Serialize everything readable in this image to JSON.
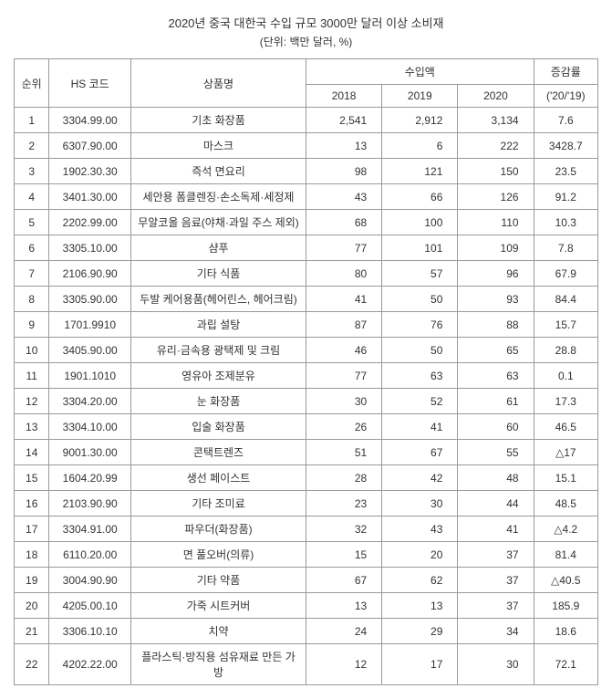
{
  "title": "2020년 중국 대한국 수입 규모 3000만 달러 이상 소비재",
  "subtitle": "(단위: 백만 달러, %)",
  "headers": {
    "rank": "순위",
    "hs_code": "HS 코드",
    "product_name": "상품명",
    "import_value": "수입액",
    "year_2018": "2018",
    "year_2019": "2019",
    "year_2020": "2020",
    "growth": "증감률",
    "growth_sub": "('20/'19)"
  },
  "rows": [
    {
      "rank": "1",
      "hs": "3304.99.00",
      "name": "기초 화장품",
      "y2018": "2,541",
      "y2019": "2,912",
      "y2020": "3,134",
      "growth": "7.6"
    },
    {
      "rank": "2",
      "hs": "6307.90.00",
      "name": "마스크",
      "y2018": "13",
      "y2019": "6",
      "y2020": "222",
      "growth": "3428.7"
    },
    {
      "rank": "3",
      "hs": "1902.30.30",
      "name": "즉석 면요리",
      "y2018": "98",
      "y2019": "121",
      "y2020": "150",
      "growth": "23.5"
    },
    {
      "rank": "4",
      "hs": "3401.30.00",
      "name": "세안용 폼클렌징·손소독제·세정제",
      "y2018": "43",
      "y2019": "66",
      "y2020": "126",
      "growth": "91.2"
    },
    {
      "rank": "5",
      "hs": "2202.99.00",
      "name": "무알코올 음료(야채·과일 주스 제외)",
      "y2018": "68",
      "y2019": "100",
      "y2020": "110",
      "growth": "10.3"
    },
    {
      "rank": "6",
      "hs": "3305.10.00",
      "name": "샴푸",
      "y2018": "77",
      "y2019": "101",
      "y2020": "109",
      "growth": "7.8"
    },
    {
      "rank": "7",
      "hs": "2106.90.90",
      "name": "기타 식품",
      "y2018": "80",
      "y2019": "57",
      "y2020": "96",
      "growth": "67.9"
    },
    {
      "rank": "8",
      "hs": "3305.90.00",
      "name": "두발 케어용품(헤어린스, 헤어크림)",
      "y2018": "41",
      "y2019": "50",
      "y2020": "93",
      "growth": "84.4"
    },
    {
      "rank": "9",
      "hs": "1701.9910",
      "name": "과립 설탕",
      "y2018": "87",
      "y2019": "76",
      "y2020": "88",
      "growth": "15.7"
    },
    {
      "rank": "10",
      "hs": "3405.90.00",
      "name": "유리·금속용 광택제 및 크림",
      "y2018": "46",
      "y2019": "50",
      "y2020": "65",
      "growth": "28.8"
    },
    {
      "rank": "11",
      "hs": "1901.1010",
      "name": "영유아 조제분유",
      "y2018": "77",
      "y2019": "63",
      "y2020": "63",
      "growth": "0.1"
    },
    {
      "rank": "12",
      "hs": "3304.20.00",
      "name": "눈 화장품",
      "y2018": "30",
      "y2019": "52",
      "y2020": "61",
      "growth": "17.3"
    },
    {
      "rank": "13",
      "hs": "3304.10.00",
      "name": "입술 화장품",
      "y2018": "26",
      "y2019": "41",
      "y2020": "60",
      "growth": "46.5"
    },
    {
      "rank": "14",
      "hs": "9001.30.00",
      "name": "콘택트렌즈",
      "y2018": "51",
      "y2019": "67",
      "y2020": "55",
      "growth": "△17"
    },
    {
      "rank": "15",
      "hs": "1604.20.99",
      "name": "생선 페이스트",
      "y2018": "28",
      "y2019": "42",
      "y2020": "48",
      "growth": "15.1"
    },
    {
      "rank": "16",
      "hs": "2103.90.90",
      "name": "기타 조미료",
      "y2018": "23",
      "y2019": "30",
      "y2020": "44",
      "growth": "48.5"
    },
    {
      "rank": "17",
      "hs": "3304.91.00",
      "name": "파우더(화장품)",
      "y2018": "32",
      "y2019": "43",
      "y2020": "41",
      "growth": "△4.2"
    },
    {
      "rank": "18",
      "hs": "6110.20.00",
      "name": "면 풀오버(의류)",
      "y2018": "15",
      "y2019": "20",
      "y2020": "37",
      "growth": "81.4"
    },
    {
      "rank": "19",
      "hs": "3004.90.90",
      "name": "기타 약품",
      "y2018": "67",
      "y2019": "62",
      "y2020": "37",
      "growth": "△40.5"
    },
    {
      "rank": "20",
      "hs": "4205.00.10",
      "name": "가죽 시트커버",
      "y2018": "13",
      "y2019": "13",
      "y2020": "37",
      "growth": "185.9"
    },
    {
      "rank": "21",
      "hs": "3306.10.10",
      "name": "치약",
      "y2018": "24",
      "y2019": "29",
      "y2020": "34",
      "growth": "18.6"
    },
    {
      "rank": "22",
      "hs": "4202.22.00",
      "name": "플라스틱·방직용 섬유재료 만든 가방",
      "y2018": "12",
      "y2019": "17",
      "y2020": "30",
      "growth": "72.1"
    }
  ]
}
